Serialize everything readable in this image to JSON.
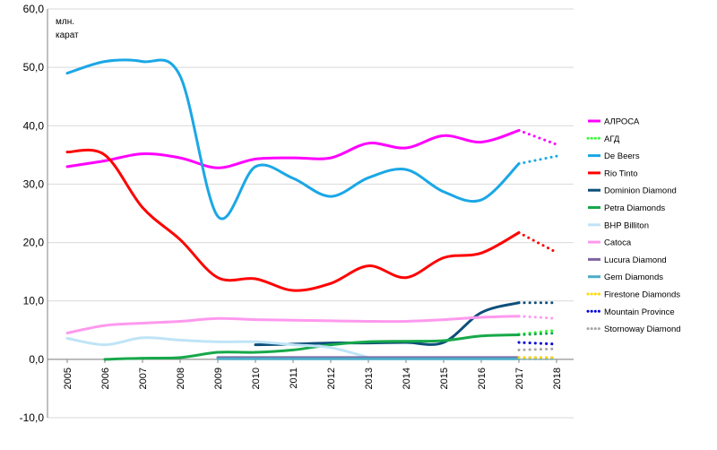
{
  "chart_data": {
    "type": "line",
    "title": "",
    "unit_label": [
      "млн.",
      "карат"
    ],
    "ylim": [
      -10,
      60
    ],
    "y_ticks": [
      "-10,0",
      "0,0",
      "10,0",
      "20,0",
      "30,0",
      "40,0",
      "50,0",
      "60,0"
    ],
    "y_tick_values": [
      -10,
      0,
      10,
      20,
      30,
      40,
      50,
      60
    ],
    "x": [
      "2005",
      "2006",
      "2007",
      "2008",
      "2009",
      "2010",
      "2011",
      "2012",
      "2013",
      "2014",
      "2015",
      "2016",
      "2017",
      "2018"
    ],
    "grid": "horizontal",
    "legend_position": "right",
    "forecast_from": "2017",
    "series": [
      {
        "name": "АЛРОСА",
        "color": "#ff00ff",
        "forecast_style": "dotted",
        "values": [
          33.0,
          34.0,
          35.2,
          34.5,
          32.8,
          34.3,
          34.5,
          34.5,
          37.0,
          36.2,
          38.3,
          37.2,
          39.2,
          36.8
        ]
      },
      {
        "name": "АГД",
        "color": "#33ff33",
        "forecast_style": "dotted",
        "values": [
          null,
          null,
          null,
          null,
          null,
          null,
          null,
          null,
          null,
          null,
          null,
          null,
          4.3,
          5.0
        ]
      },
      {
        "name": "De Beers",
        "color": "#1aa7e6",
        "forecast_style": "dotted",
        "values": [
          49.0,
          51.0,
          51.0,
          48.5,
          24.5,
          33.0,
          31.0,
          27.9,
          31.1,
          32.5,
          28.7,
          27.3,
          33.5,
          34.8
        ]
      },
      {
        "name": "Rio Tinto",
        "color": "#ff0000",
        "forecast_style": "dotted",
        "values": [
          35.5,
          35.0,
          26.0,
          20.5,
          14.0,
          13.8,
          11.8,
          13.0,
          16.0,
          14.0,
          17.4,
          18.2,
          21.7,
          18.3
        ]
      },
      {
        "name": "Dominion Diamond",
        "color": "#0d4f7a",
        "forecast_style": "dotted",
        "values": [
          null,
          null,
          null,
          null,
          null,
          2.5,
          2.6,
          2.8,
          2.8,
          2.9,
          2.9,
          8.0,
          9.7,
          9.7
        ]
      },
      {
        "name": "Petra Diamonds",
        "color": "#17a84a",
        "forecast_style": "dotted",
        "values": [
          null,
          0.0,
          0.2,
          0.3,
          1.2,
          1.2,
          1.6,
          2.5,
          3.0,
          3.1,
          3.2,
          4.0,
          4.2,
          4.5
        ]
      },
      {
        "name": "BHP Billiton",
        "color": "#bfe4f7",
        "forecast_style": "none",
        "values": [
          3.6,
          2.5,
          3.7,
          3.3,
          3.0,
          3.0,
          2.5,
          2.0,
          0.3,
          null,
          null,
          null,
          null,
          null
        ]
      },
      {
        "name": "Catoca",
        "color": "#ff99ee",
        "forecast_style": "dotted",
        "values": [
          4.5,
          5.8,
          6.2,
          6.5,
          7.0,
          6.8,
          6.7,
          6.6,
          6.5,
          6.5,
          6.8,
          7.2,
          7.4,
          7.0
        ]
      },
      {
        "name": "Lucura Diamond",
        "color": "#8064a2",
        "forecast_style": "dotted",
        "values": [
          null,
          null,
          null,
          null,
          0.3,
          0.3,
          0.3,
          0.3,
          0.3,
          0.3,
          0.3,
          0.3,
          0.3,
          0.3
        ]
      },
      {
        "name": "Gem Diamonds",
        "color": "#4bacc6",
        "forecast_style": "dotted",
        "values": [
          null,
          null,
          null,
          null,
          0.1,
          0.1,
          0.1,
          0.1,
          0.1,
          0.1,
          0.1,
          0.1,
          0.1,
          0.1
        ]
      },
      {
        "name": "Firestone Diamonds",
        "color": "#ffd700",
        "forecast_style": "dotted",
        "values": [
          null,
          null,
          null,
          null,
          null,
          null,
          null,
          null,
          null,
          null,
          null,
          null,
          0.3,
          0.3
        ]
      },
      {
        "name": "Mountain Province",
        "color": "#0000dd",
        "forecast_style": "dotted",
        "values": [
          null,
          null,
          null,
          null,
          null,
          null,
          null,
          null,
          null,
          null,
          null,
          null,
          2.9,
          2.6
        ]
      },
      {
        "name": "Stornoway Diamond",
        "color": "#a6a6a6",
        "forecast_style": "dotted",
        "values": [
          null,
          null,
          null,
          null,
          null,
          null,
          null,
          null,
          null,
          null,
          null,
          null,
          1.6,
          1.8
        ]
      }
    ]
  }
}
